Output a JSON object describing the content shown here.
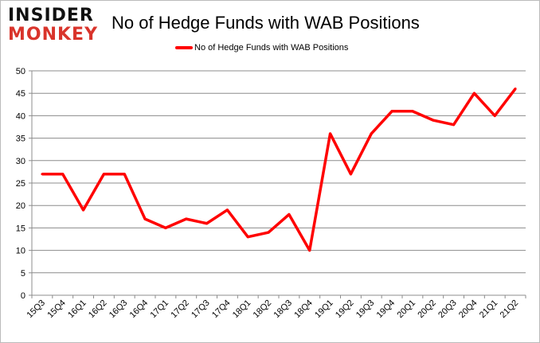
{
  "logo": {
    "line1": "INSIDER",
    "line2": "MONKEY"
  },
  "chart_data": {
    "type": "line",
    "title": "No of Hedge Funds with WAB Positions",
    "xlabel": "",
    "ylabel": "",
    "ylim": [
      0,
      50
    ],
    "yticks": [
      0,
      5,
      10,
      15,
      20,
      25,
      30,
      35,
      40,
      45,
      50
    ],
    "grid": true,
    "legend_position": "top",
    "categories": [
      "15Q3",
      "15Q4",
      "16Q1",
      "16Q2",
      "16Q3",
      "16Q4",
      "17Q1",
      "17Q2",
      "17Q3",
      "17Q4",
      "18Q1",
      "18Q2",
      "18Q3",
      "18Q4",
      "19Q1",
      "19Q2",
      "19Q3",
      "19Q4",
      "20Q1",
      "20Q2",
      "20Q3",
      "20Q4",
      "21Q1",
      "21Q2"
    ],
    "series": [
      {
        "name": "No of Hedge Funds with WAB Positions",
        "color": "#ff0000",
        "values": [
          27,
          27,
          19,
          27,
          27,
          17,
          15,
          17,
          16,
          19,
          13,
          14,
          18,
          10,
          36,
          27,
          36,
          41,
          41,
          39,
          38,
          45,
          40,
          46
        ]
      }
    ]
  }
}
